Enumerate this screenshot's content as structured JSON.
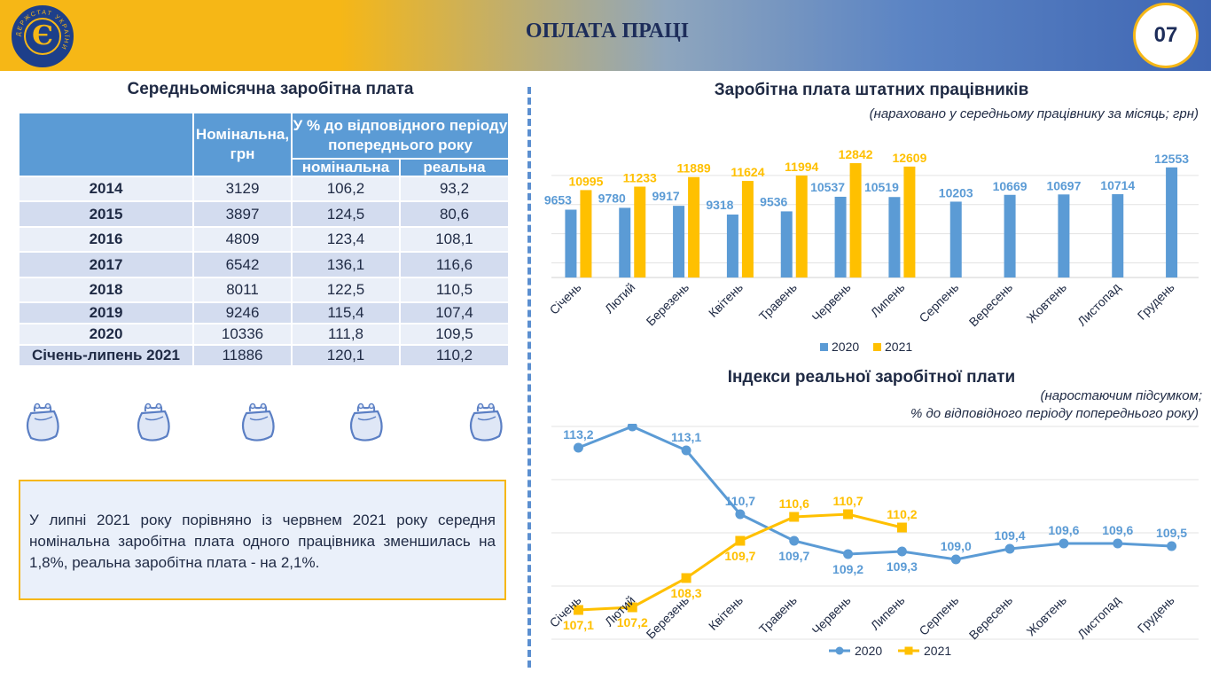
{
  "header": {
    "title": "ОПЛАТА ПРАЦІ",
    "page_number": "07",
    "logo_letter": "Є",
    "logo_text": "ДЕРЖСТАТ УКРАЇНИ"
  },
  "table_section": {
    "title": "Середньомісячна заробітна плата",
    "col_nominal_header": "Номінальна, грн",
    "col_group_header": "У % до відповідного періоду попереднього року",
    "col_sub_nominal": "номінальна",
    "col_sub_real": "реальна",
    "rows": [
      {
        "period": "2014",
        "nominal": "3129",
        "pct_nominal": "106,2",
        "pct_real": "93,2"
      },
      {
        "period": "2015",
        "nominal": "3897",
        "pct_nominal": "124,5",
        "pct_real": "80,6"
      },
      {
        "period": "2016",
        "nominal": "4809",
        "pct_nominal": "123,4",
        "pct_real": "108,1"
      },
      {
        "period": "2017",
        "nominal": "6542",
        "pct_nominal": "136,1",
        "pct_real": "116,6"
      },
      {
        "period": "2018",
        "nominal": "8011",
        "pct_nominal": "122,5",
        "pct_real": "110,5"
      },
      {
        "period": "2019",
        "nominal": "9246",
        "pct_nominal": "115,4",
        "pct_real": "107,4"
      },
      {
        "period": "2020",
        "nominal": "10336",
        "pct_nominal": "111,8",
        "pct_real": "109,5"
      },
      {
        "period": "Січень-липень 2021",
        "nominal": "11886",
        "pct_nominal": "120,1",
        "pct_real": "110,2"
      }
    ]
  },
  "note": {
    "text": "У липні 2021 року порівняно із червнем 2021 року середня номінальна заробітна плата одного працівника зменшилась на 1,8%, реальна заробітна плата - на 2,1%."
  },
  "colors": {
    "blue_series": "#5b9bd5",
    "yellow_series": "#ffc000",
    "accent_gold": "#f6b716",
    "dark_blue": "#1d3f8a"
  },
  "chart_data": [
    {
      "type": "bar",
      "title": "Заробітна плата штатних працівників",
      "subtitle": "(нараховано у середньому працівнику за місяць; грн)",
      "categories": [
        "Січень",
        "Лютий",
        "Березень",
        "Квітень",
        "Травень",
        "Червень",
        "Липень",
        "Серпень",
        "Вересень",
        "Жовтень",
        "Листопад",
        "Грудень"
      ],
      "series": [
        {
          "name": "2020",
          "values": [
            9653,
            9780,
            9917,
            9318,
            9536,
            10537,
            10519,
            10203,
            10669,
            10697,
            10714,
            12553
          ]
        },
        {
          "name": "2021",
          "values": [
            10995,
            11233,
            11889,
            11624,
            11994,
            12842,
            12609,
            null,
            null,
            null,
            null,
            null
          ]
        }
      ],
      "ylim": [
        5000,
        14000
      ],
      "grid": true,
      "legend": "bottom"
    },
    {
      "type": "line",
      "title": "Індекси реальної заробітної плати",
      "subtitle_line1": "(наростаючим підсумком;",
      "subtitle_line2": "% до відповідного періоду попереднього року)",
      "categories": [
        "Січень",
        "Лютий",
        "Березень",
        "Квітень",
        "Травень",
        "Червень",
        "Липень",
        "Серпень",
        "Вересень",
        "Жовтень",
        "Листопад",
        "Грудень"
      ],
      "series": [
        {
          "name": "2020",
          "values": [
            113.2,
            114.0,
            113.1,
            110.7,
            109.7,
            109.2,
            109.3,
            109.0,
            109.4,
            109.6,
            109.6,
            109.5
          ]
        },
        {
          "name": "2021",
          "values": [
            107.1,
            107.2,
            108.3,
            109.7,
            110.6,
            110.7,
            110.2,
            null,
            null,
            null,
            null,
            null
          ]
        }
      ],
      "ylim": [
        104,
        116
      ],
      "grid": true,
      "legend": "bottom"
    }
  ]
}
